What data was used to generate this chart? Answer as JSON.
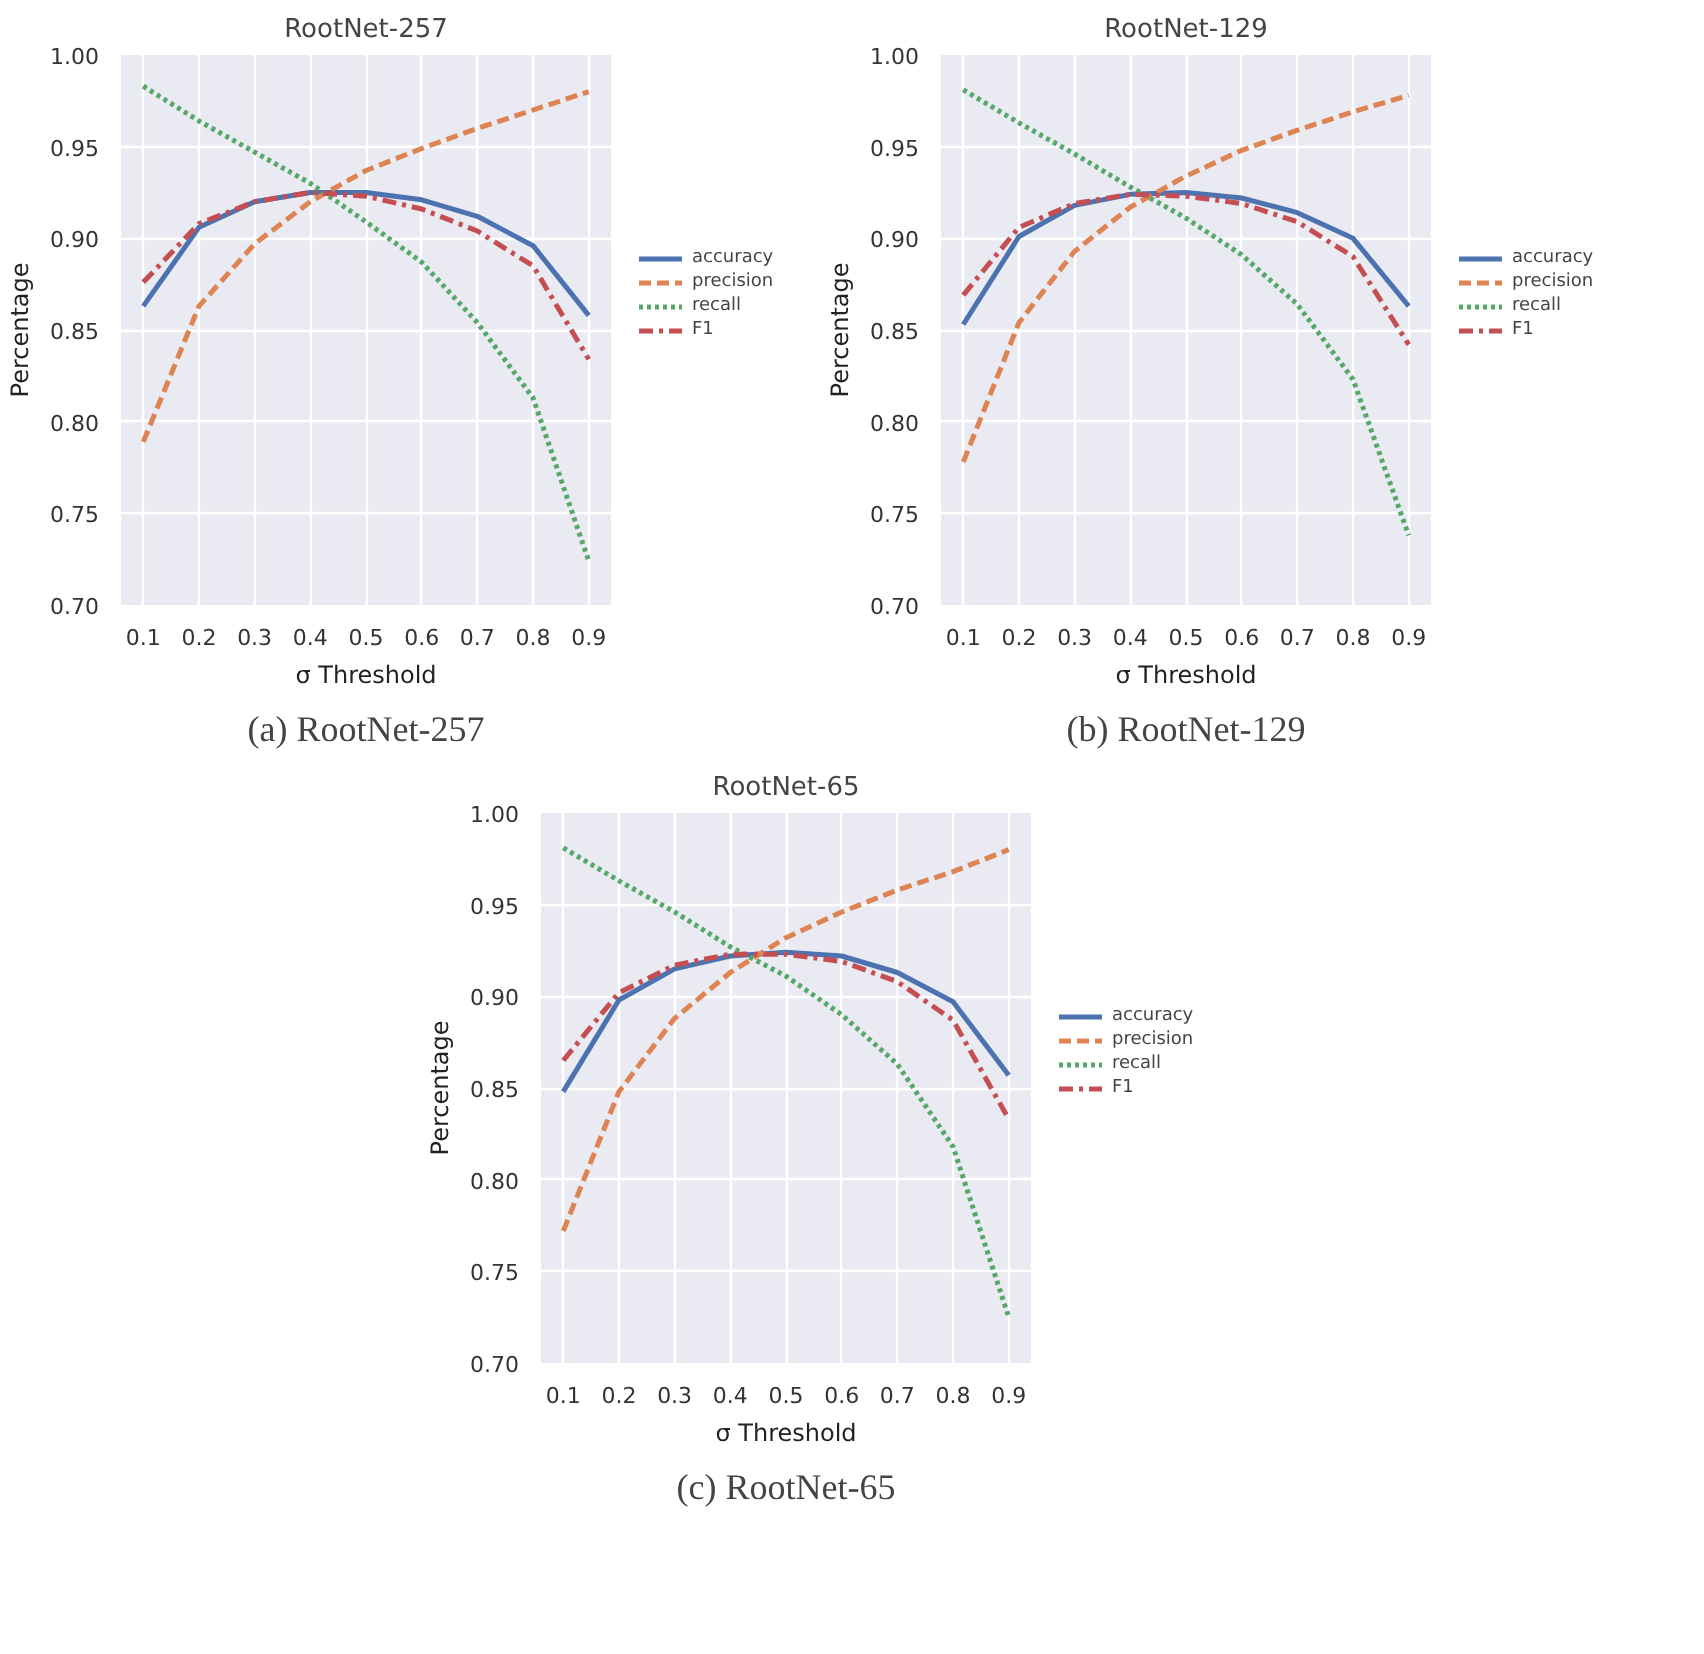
{
  "chart_data": [
    {
      "type": "line",
      "title": "RootNet-257",
      "xlabel": "σ Threshold",
      "ylabel": "Percentage",
      "annotations": [
        "(a) RootNet-257"
      ],
      "x": [
        0.1,
        0.2,
        0.3,
        0.4,
        0.5,
        0.6,
        0.7,
        0.8,
        0.9
      ],
      "xlim": [
        0.06,
        0.94
      ],
      "xticks": [
        0.1,
        0.2,
        0.3,
        0.4,
        0.5,
        0.6,
        0.7,
        0.8,
        0.9
      ],
      "ylim": [
        0.7,
        1.0
      ],
      "yticks": [
        {
          "value": 0.7,
          "label": "0.70"
        },
        {
          "value": 0.75,
          "label": "0.75"
        },
        {
          "value": 0.8,
          "label": "0.80"
        },
        {
          "value": 0.85,
          "label": "0.85"
        },
        {
          "value": 0.9,
          "label": "0.90"
        },
        {
          "value": 0.95,
          "label": "0.95"
        },
        {
          "value": 1.0,
          "label": "1.00"
        }
      ],
      "grid": true,
      "legend": "right",
      "series": [
        {
          "name": "accuracy",
          "color": "#4c72b0",
          "line_style": "solid",
          "values": [
            0.863,
            0.906,
            0.92,
            0.925,
            0.925,
            0.921,
            0.912,
            0.896,
            0.858
          ]
        },
        {
          "name": "precision",
          "color": "#dd8452",
          "line_style": "dashed",
          "values": [
            0.789,
            0.863,
            0.897,
            0.92,
            0.937,
            0.949,
            0.96,
            0.97,
            0.98
          ]
        },
        {
          "name": "recall",
          "color": "#55a868",
          "line_style": "dotted",
          "values": [
            0.983,
            0.964,
            0.947,
            0.93,
            0.909,
            0.887,
            0.854,
            0.813,
            0.724
          ]
        },
        {
          "name": "F1",
          "color": "#c44e52",
          "line_style": "dashdot",
          "values": [
            0.876,
            0.908,
            0.92,
            0.925,
            0.923,
            0.916,
            0.904,
            0.885,
            0.834
          ]
        }
      ]
    },
    {
      "type": "line",
      "title": "RootNet-129",
      "xlabel": "σ Threshold",
      "ylabel": "Percentage",
      "annotations": [
        "(b) RootNet-129"
      ],
      "x": [
        0.1,
        0.2,
        0.3,
        0.4,
        0.5,
        0.6,
        0.7,
        0.8,
        0.9
      ],
      "xlim": [
        0.06,
        0.94
      ],
      "xticks": [
        0.1,
        0.2,
        0.3,
        0.4,
        0.5,
        0.6,
        0.7,
        0.8,
        0.9
      ],
      "ylim": [
        0.7,
        1.0
      ],
      "yticks": [
        {
          "value": 0.7,
          "label": "0.70"
        },
        {
          "value": 0.75,
          "label": "0.75"
        },
        {
          "value": 0.8,
          "label": "0.80"
        },
        {
          "value": 0.85,
          "label": "0.85"
        },
        {
          "value": 0.9,
          "label": "0.90"
        },
        {
          "value": 0.95,
          "label": "0.95"
        },
        {
          "value": 1.0,
          "label": "1.00"
        }
      ],
      "grid": true,
      "legend": "right",
      "series": [
        {
          "name": "accuracy",
          "color": "#4c72b0",
          "line_style": "solid",
          "values": [
            0.853,
            0.901,
            0.918,
            0.924,
            0.925,
            0.922,
            0.914,
            0.9,
            0.863
          ]
        },
        {
          "name": "precision",
          "color": "#dd8452",
          "line_style": "dashed",
          "values": [
            0.778,
            0.854,
            0.893,
            0.917,
            0.934,
            0.948,
            0.959,
            0.969,
            0.978
          ]
        },
        {
          "name": "recall",
          "color": "#55a868",
          "line_style": "dotted",
          "values": [
            0.981,
            0.963,
            0.946,
            0.928,
            0.911,
            0.891,
            0.864,
            0.823,
            0.738
          ]
        },
        {
          "name": "F1",
          "color": "#c44e52",
          "line_style": "dashdot",
          "values": [
            0.869,
            0.906,
            0.919,
            0.924,
            0.923,
            0.919,
            0.909,
            0.89,
            0.842
          ]
        }
      ]
    },
    {
      "type": "line",
      "title": "RootNet-65",
      "xlabel": "σ Threshold",
      "ylabel": "Percentage",
      "annotations": [
        "(c) RootNet-65"
      ],
      "x": [
        0.1,
        0.2,
        0.3,
        0.4,
        0.5,
        0.6,
        0.7,
        0.8,
        0.9
      ],
      "xlim": [
        0.06,
        0.94
      ],
      "xticks": [
        0.1,
        0.2,
        0.3,
        0.4,
        0.5,
        0.6,
        0.7,
        0.8,
        0.9
      ],
      "ylim": [
        0.7,
        1.0
      ],
      "yticks": [
        {
          "value": 0.7,
          "label": "0.70"
        },
        {
          "value": 0.75,
          "label": "0.75"
        },
        {
          "value": 0.8,
          "label": "0.80"
        },
        {
          "value": 0.85,
          "label": "0.85"
        },
        {
          "value": 0.9,
          "label": "0.90"
        },
        {
          "value": 0.95,
          "label": "0.95"
        },
        {
          "value": 1.0,
          "label": "1.00"
        }
      ],
      "grid": true,
      "legend": "right",
      "series": [
        {
          "name": "accuracy",
          "color": "#4c72b0",
          "line_style": "solid",
          "values": [
            0.848,
            0.898,
            0.915,
            0.922,
            0.924,
            0.922,
            0.913,
            0.897,
            0.857
          ]
        },
        {
          "name": "precision",
          "color": "#dd8452",
          "line_style": "dashed",
          "values": [
            0.772,
            0.848,
            0.888,
            0.913,
            0.932,
            0.946,
            0.958,
            0.968,
            0.98
          ]
        },
        {
          "name": "recall",
          "color": "#55a868",
          "line_style": "dotted",
          "values": [
            0.981,
            0.963,
            0.946,
            0.927,
            0.911,
            0.89,
            0.863,
            0.818,
            0.725
          ]
        },
        {
          "name": "F1",
          "color": "#c44e52",
          "line_style": "dashdot",
          "values": [
            0.865,
            0.902,
            0.917,
            0.923,
            0.923,
            0.919,
            0.908,
            0.887,
            0.833
          ]
        }
      ]
    }
  ]
}
